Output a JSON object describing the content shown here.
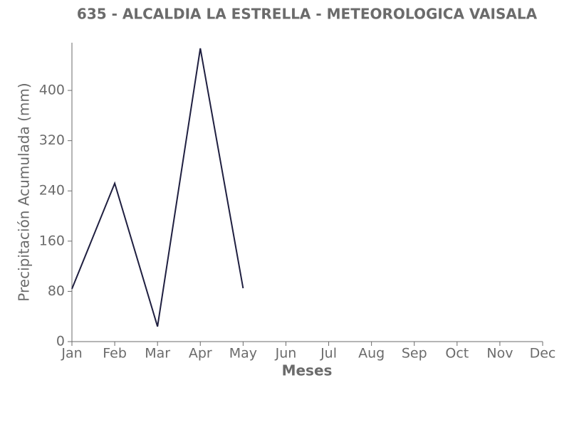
{
  "chart_data": {
    "type": "line",
    "title": "635 - ALCALDIA LA ESTRELLA - METEOROLOGICA VAISALA",
    "x_label": "Meses",
    "y_label": "Precipitación Acumulada (mm)",
    "categories": [
      "Jan",
      "Feb",
      "Mar",
      "Apr",
      "May",
      "Jun",
      "Jul",
      "Aug",
      "Sep",
      "Oct",
      "Nov",
      "Dec"
    ],
    "values": [
      84,
      252,
      24,
      467,
      85,
      null,
      null,
      null,
      null,
      null,
      null,
      null
    ],
    "color": "#1f1f40",
    "ylim": [
      0,
      476
    ],
    "yticks": [
      0,
      80,
      160,
      240,
      320,
      400
    ],
    "grid": false
  }
}
